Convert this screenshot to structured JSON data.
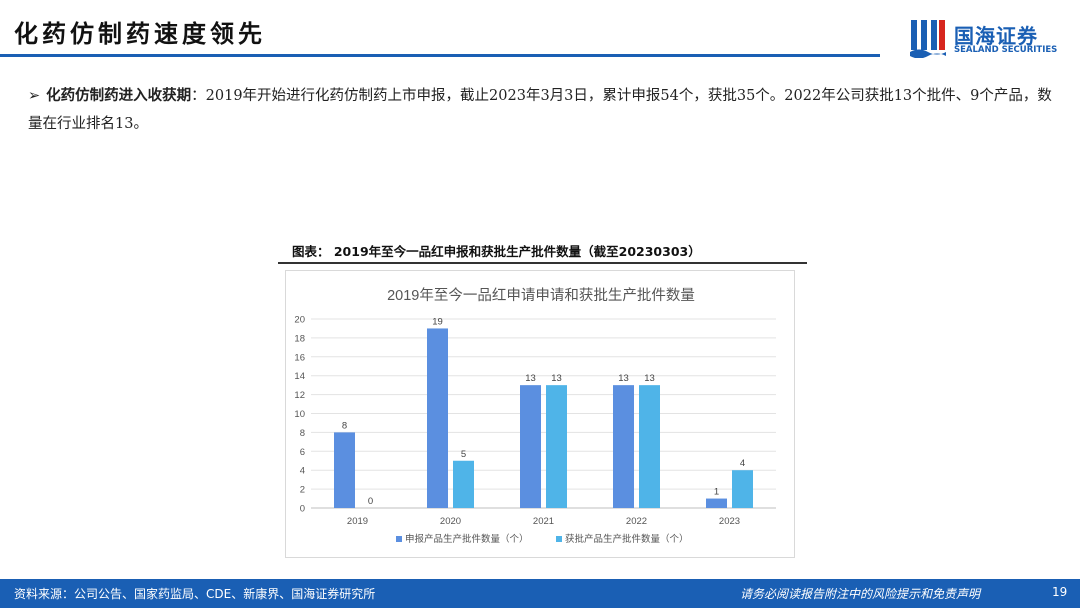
{
  "header": {
    "title": "化药仿制药速度领先",
    "logo_cn": "国海证券",
    "logo_en": "SEALAND SECURITIES",
    "accent_color": "#1a5fb4"
  },
  "body": {
    "bullet_lead": "化药仿制药进入收获期",
    "bullet_text": "：2019年开始进行化药仿制药上市申报，截止2023年3月3日，累计申报54个，获批35个。2022年公司获批13个批件、9个产品，数量在行业排名13。"
  },
  "figure": {
    "caption": "图表： 2019年至今一品红申报和获批生产批件数量（截至20230303）"
  },
  "chart_data": {
    "type": "bar",
    "title": "2019年至今一品红申请申请和获批生产批件数量",
    "categories": [
      "2019",
      "2020",
      "2021",
      "2022",
      "2023"
    ],
    "series": [
      {
        "name": "申报产品生产批件数量（个）",
        "values": [
          8,
          19,
          13,
          13,
          1
        ],
        "color": "#5b8fe0"
      },
      {
        "name": "获批产品生产批件数量（个）",
        "values": [
          0,
          5,
          13,
          13,
          4
        ],
        "color": "#4fb4e8"
      }
    ],
    "ylim": [
      0,
      20
    ],
    "yticks": [
      0,
      2,
      4,
      6,
      8,
      10,
      12,
      14,
      16,
      18,
      20
    ],
    "grid": true,
    "legend_position": "bottom"
  },
  "footer": {
    "source": "资料来源：公司公告、国家药监局、CDE、新康界、国海证券研究所",
    "disclaimer": "请务必阅读报告附注中的风险提示和免责声明",
    "page": "19"
  }
}
